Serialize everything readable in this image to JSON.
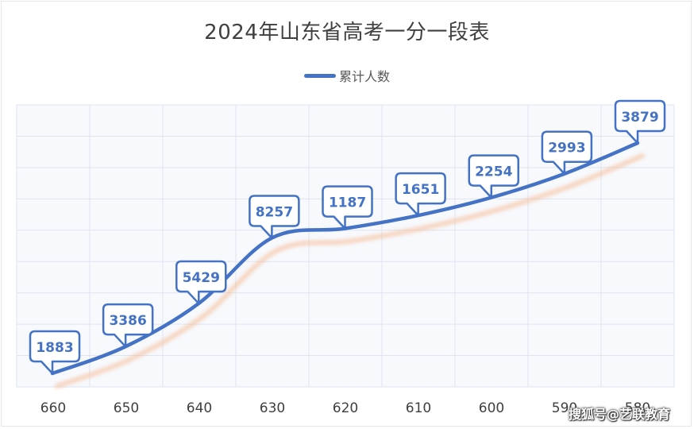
{
  "chart_data": {
    "type": "line",
    "title": "2024年山东省高考一分一段表",
    "xlabel": "",
    "ylabel": "",
    "categories": [
      "660",
      "650",
      "640",
      "630",
      "620",
      "610",
      "600",
      "590",
      "580"
    ],
    "series": [
      {
        "name": "累计人数",
        "values": [
          1883,
          3386,
          5429,
          8257,
          1187,
          1651,
          2254,
          2993,
          3879
        ],
        "color": "#4472c4"
      }
    ],
    "legend_position": "top-center",
    "grid": true,
    "plot_background": "#f7f9fd",
    "grid_color": "#dde5f1",
    "shadow_color": "#f7b58a"
  },
  "watermark": "搜狐号@艺联教育"
}
